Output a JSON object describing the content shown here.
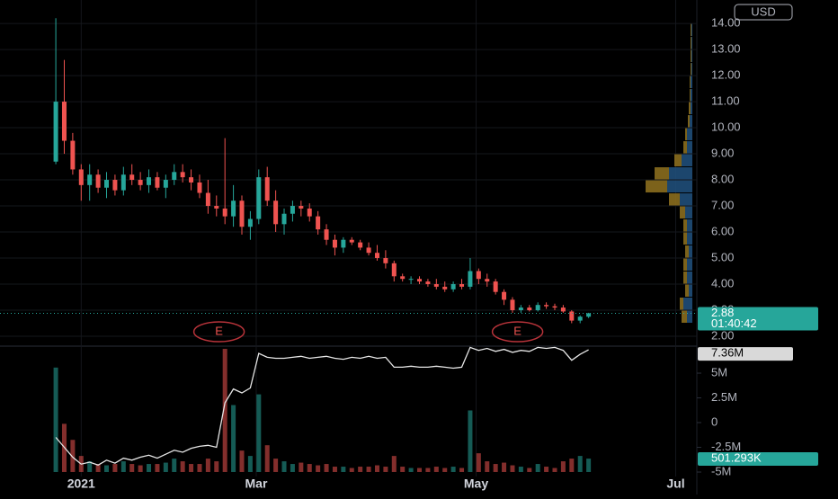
{
  "chart_data": {
    "type": "candlestick",
    "currency": "USD",
    "xlim": [
      -6.6,
      75.8
    ],
    "xticks": [
      {
        "value": 3,
        "label": "2021"
      },
      {
        "value": 23.7,
        "label": "Mar"
      },
      {
        "value": 49.7,
        "label": "May"
      },
      {
        "value": 73.3,
        "label": "Jul"
      }
    ],
    "ylim": [
      1.62,
      14.9
    ],
    "yticks": [
      {
        "value": 2,
        "label": "2.00"
      },
      {
        "value": 3,
        "label": "3.00"
      },
      {
        "value": 4,
        "label": "4.00"
      },
      {
        "value": 5,
        "label": "5.00"
      },
      {
        "value": 6,
        "label": "6.00"
      },
      {
        "value": 7,
        "label": "7.00"
      },
      {
        "value": 8,
        "label": "8.00"
      },
      {
        "value": 9,
        "label": "9.00"
      },
      {
        "value": 10,
        "label": "10.00"
      },
      {
        "value": 11,
        "label": "11.00"
      },
      {
        "value": 12,
        "label": "12.00"
      },
      {
        "value": 13,
        "label": "13.00"
      },
      {
        "value": 14,
        "label": "14.00"
      }
    ],
    "grid": true,
    "up_color": "#26a69a",
    "down_color": "#ef5350",
    "open": [
      8.7,
      11,
      9.5,
      8.4,
      7.8,
      8.2,
      7.7,
      8.0,
      7.6,
      8.2,
      8.0,
      7.8,
      8.1,
      7.7,
      8.0,
      8.3,
      8.1,
      7.9,
      7.5,
      7.0,
      6.9,
      6.6,
      7.2,
      6.2,
      6.5,
      8.1,
      7.2,
      6.3,
      6.7,
      7.0,
      6.9,
      6.6,
      6.1,
      5.7,
      5.4,
      5.7,
      5.6,
      5.4,
      5.2,
      5.0,
      4.8,
      4.3,
      4.2,
      4.2,
      4.1,
      4.0,
      3.9,
      3.8,
      4.0,
      3.9,
      4.5,
      4.2,
      4.1,
      3.7,
      3.4,
      3.0,
      3.1,
      3.0,
      3.2,
      3.15,
      3.1,
      2.95,
      2.6,
      2.75
    ],
    "high": [
      14.2,
      12.6,
      9.8,
      8.6,
      8.6,
      8.4,
      8.3,
      8.2,
      8.5,
      8.6,
      8.3,
      8.4,
      8.3,
      8.2,
      8.6,
      8.6,
      8.4,
      8.2,
      8.0,
      7.4,
      9.6,
      7.8,
      7.4,
      6.8,
      8.4,
      8.5,
      7.6,
      6.9,
      7.2,
      7.2,
      7.1,
      6.8,
      6.3,
      5.9,
      5.8,
      5.8,
      5.7,
      5.6,
      5.5,
      5.3,
      4.9,
      4.4,
      4.3,
      4.3,
      4.2,
      4.2,
      4.1,
      4.1,
      4.2,
      5.0,
      4.6,
      4.4,
      4.2,
      3.8,
      3.5,
      3.2,
      3.2,
      3.3,
      3.3,
      3.25,
      3.2,
      3.0,
      2.8,
      2.9
    ],
    "low": [
      8.6,
      9,
      8.2,
      7.2,
      7.2,
      7.5,
      7.3,
      7.4,
      7.4,
      7.8,
      7.6,
      7.5,
      7.6,
      7.3,
      7.8,
      7.9,
      7.6,
      7.3,
      6.7,
      6.6,
      6.3,
      6.2,
      5.9,
      5.7,
      6.3,
      7.0,
      6.0,
      5.9,
      6.4,
      6.6,
      6.4,
      5.9,
      5.5,
      5.1,
      5.2,
      5.5,
      5.3,
      5.1,
      4.9,
      4.6,
      4.1,
      4.1,
      4.0,
      4.0,
      3.9,
      3.8,
      3.7,
      3.7,
      3.8,
      3.8,
      4.0,
      3.9,
      3.6,
      3.2,
      2.9,
      2.9,
      2.95,
      2.95,
      3.05,
      3.0,
      2.9,
      2.5,
      2.5,
      2.7
    ],
    "close": [
      11,
      9.5,
      8.4,
      7.8,
      8.2,
      7.7,
      8.0,
      7.6,
      8.2,
      8.0,
      7.8,
      8.1,
      7.7,
      8.0,
      8.3,
      8.1,
      7.9,
      7.5,
      7.0,
      6.9,
      6.6,
      7.2,
      6.2,
      6.5,
      8.1,
      7.2,
      6.3,
      6.7,
      7.0,
      6.9,
      6.6,
      6.1,
      5.7,
      5.4,
      5.7,
      5.6,
      5.4,
      5.2,
      5.0,
      4.8,
      4.3,
      4.2,
      4.2,
      4.1,
      4.0,
      3.9,
      3.8,
      4.0,
      3.9,
      4.5,
      4.2,
      4.1,
      3.7,
      3.4,
      3.0,
      3.1,
      3.0,
      3.2,
      3.15,
      3.1,
      2.95,
      2.6,
      2.75,
      2.88
    ],
    "last_price_label": "2.88",
    "countdown": "01:40:42",
    "earnings": [
      {
        "x": 19.3,
        "label": "E"
      },
      {
        "x": 54.6,
        "label": "E"
      }
    ],
    "volume": {
      "values": [
        3.9,
        1.8,
        1.2,
        0.6,
        0.4,
        0.3,
        0.25,
        0.3,
        0.4,
        0.3,
        0.25,
        0.3,
        0.3,
        0.35,
        0.5,
        0.4,
        0.3,
        0.3,
        0.5,
        0.4,
        4.6,
        2.5,
        0.8,
        0.6,
        2.9,
        1.0,
        0.5,
        0.4,
        0.3,
        0.35,
        0.3,
        0.25,
        0.3,
        0.2,
        0.2,
        0.15,
        0.2,
        0.2,
        0.25,
        0.2,
        0.6,
        0.2,
        0.15,
        0.15,
        0.15,
        0.2,
        0.15,
        0.2,
        0.15,
        2.3,
        0.7,
        0.4,
        0.3,
        0.35,
        0.25,
        0.2,
        0.15,
        0.3,
        0.2,
        0.15,
        0.4,
        0.5,
        0.6,
        0.501293
      ],
      "lim": [
        -0.84,
        4.7
      ],
      "last_label": "501.293K"
    },
    "y2lim": [
      -7.27,
      7.73
    ],
    "y2ticks": [
      {
        "value": 5,
        "label": "5M"
      },
      {
        "value": 2.5,
        "label": "2.5M"
      },
      0,
      {
        "value": -2.5,
        "label": "-2.5M"
      },
      {
        "value": -5,
        "label": "-5M"
      }
    ],
    "indicator": {
      "axis": "y2",
      "color": "#e6e6e6",
      "values": [
        -1.5,
        -2.5,
        -3.5,
        -4.2,
        -4.0,
        -4.3,
        -3.8,
        -4.1,
        -3.6,
        -3.8,
        -3.5,
        -3.3,
        -3.6,
        -3.2,
        -2.8,
        -3.0,
        -2.6,
        -2.4,
        -2.3,
        -2.5,
        2.0,
        3.4,
        3.0,
        3.5,
        7.0,
        6.6,
        6.5,
        6.5,
        6.6,
        6.7,
        6.5,
        6.6,
        6.7,
        6.5,
        6.4,
        6.6,
        6.5,
        6.7,
        6.5,
        6.6,
        5.6,
        5.6,
        5.7,
        5.6,
        5.6,
        5.7,
        5.6,
        5.5,
        5.6,
        7.6,
        7.3,
        7.5,
        7.2,
        7.4,
        7.1,
        7.3,
        7.2,
        7.6,
        7.5,
        7.6,
        7.3,
        6.3,
        6.9,
        7.36
      ],
      "last_label": "7.36M"
    },
    "profile": {
      "prices": [
        2.75,
        3.25,
        3.75,
        4.25,
        4.75,
        5.25,
        5.75,
        6.25,
        6.75,
        7.25,
        7.75,
        8.25,
        8.75,
        9.25,
        9.75,
        10.25,
        10.75,
        11.25,
        11.75,
        12.25,
        12.75,
        13.25,
        13.75
      ],
      "up": [
        0.3,
        0.5,
        0.2,
        0.3,
        0.3,
        0.2,
        0.3,
        0.3,
        0.4,
        0.7,
        1.4,
        1.3,
        0.6,
        0.3,
        0.3,
        0.15,
        0.1,
        0.1,
        0.1,
        0.05,
        0.05,
        0.05,
        0.05
      ],
      "down": [
        0.3,
        0.2,
        0.2,
        0.2,
        0.2,
        0.2,
        0.2,
        0.2,
        0.3,
        0.6,
        1.2,
        0.8,
        0.4,
        0.2,
        0.1,
        0.1,
        0.1,
        0.05,
        0.05,
        0.05,
        0.05,
        0.05,
        0.05
      ],
      "up_color": "#1f4e79",
      "down_color": "#8a6d1e"
    }
  }
}
